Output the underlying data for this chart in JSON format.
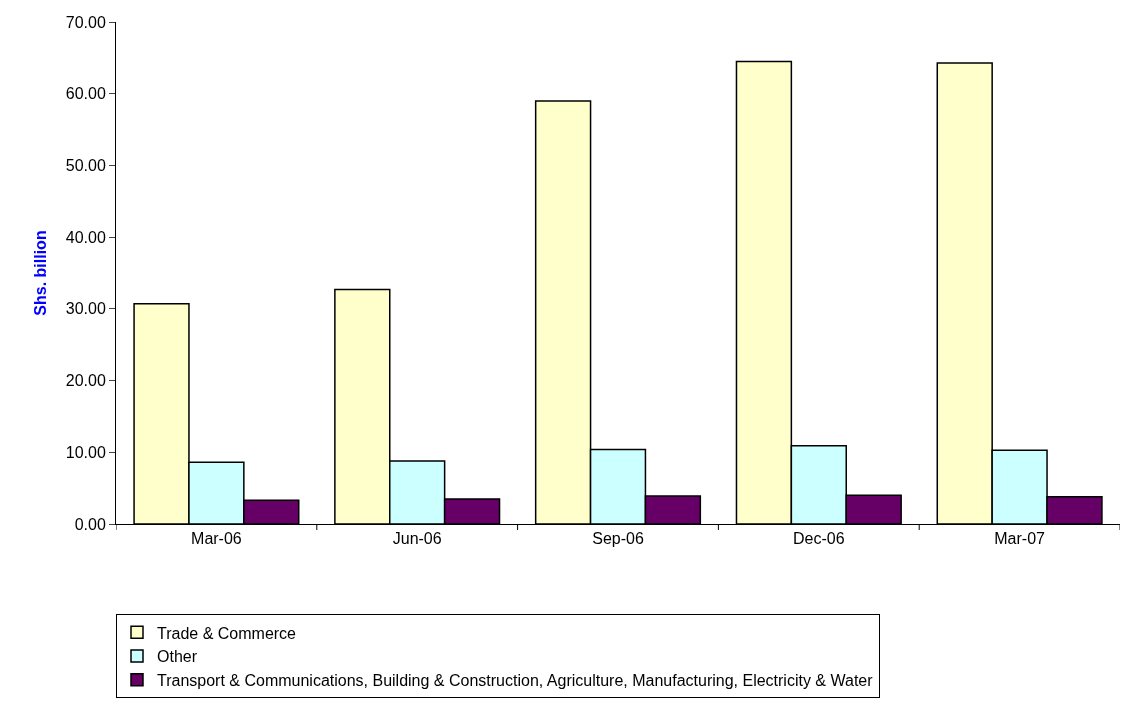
{
  "chart_data": {
    "type": "bar",
    "ylabel": "Shs. billion",
    "categories": [
      "Mar-06",
      "Jun-06",
      "Sep-06",
      "Dec-06",
      "Mar-07"
    ],
    "series": [
      {
        "name": "Trade & Commerce",
        "color": "#ffffcc",
        "values": [
          30.7,
          32.7,
          59.0,
          64.5,
          64.3
        ]
      },
      {
        "name": "Other",
        "color": "#ccffff",
        "values": [
          8.6,
          8.8,
          10.4,
          10.9,
          10.3
        ]
      },
      {
        "name": "Transport & Communications, Building & Construction, Agriculture, Manufacturing, Electricity & Water",
        "color": "#660066",
        "values": [
          3.3,
          3.5,
          3.9,
          4.0,
          3.8
        ]
      }
    ],
    "ylim": [
      0,
      70
    ],
    "yticks": [
      {
        "value": 0,
        "label": "0.00"
      },
      {
        "value": 10,
        "label": "10.00"
      },
      {
        "value": 20,
        "label": "20.00"
      },
      {
        "value": 30,
        "label": "30.00"
      },
      {
        "value": 40,
        "label": "40.00"
      },
      {
        "value": 50,
        "label": "50.00"
      },
      {
        "value": 60,
        "label": "60.00"
      },
      {
        "value": 70,
        "label": "70.00"
      }
    ],
    "legend": "bottom"
  }
}
